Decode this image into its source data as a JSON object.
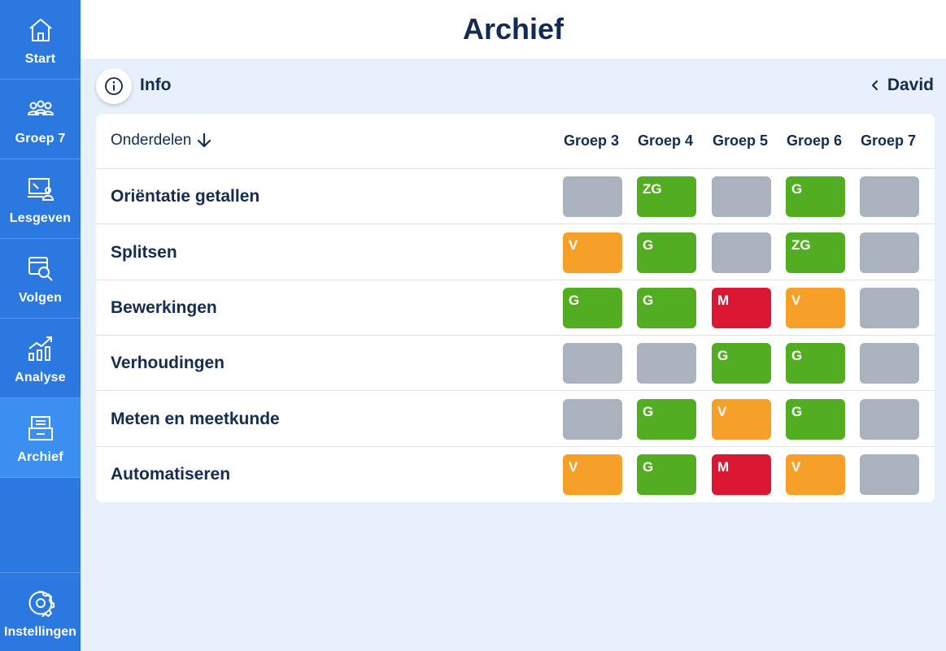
{
  "sidebar": {
    "items": [
      {
        "label": "Start",
        "icon": "home-icon"
      },
      {
        "label": "Groep 7",
        "icon": "group-icon"
      },
      {
        "label": "Lesgeven",
        "icon": "teach-icon"
      },
      {
        "label": "Volgen",
        "icon": "monitor-search-icon"
      },
      {
        "label": "Analyse",
        "icon": "analysis-chart-icon"
      },
      {
        "label": "Archief",
        "icon": "archive-icon",
        "active": true
      }
    ],
    "settings": {
      "label": "Instellingen",
      "icon": "gear-icon"
    }
  },
  "header": {
    "title": "Archief"
  },
  "infobar": {
    "info_label": "Info",
    "back_label": "David"
  },
  "table": {
    "sort_header": "Onderdelen",
    "columns": [
      "Groep 3",
      "Groep 4",
      "Groep 5",
      "Groep 6",
      "Groep 7"
    ],
    "rows": [
      {
        "label": "Oriëntatie getallen",
        "cells": [
          "",
          "ZG",
          "",
          "G",
          ""
        ]
      },
      {
        "label": "Splitsen",
        "cells": [
          "V",
          "G",
          "",
          "ZG",
          ""
        ]
      },
      {
        "label": "Bewerkingen",
        "cells": [
          "G",
          "G",
          "M",
          "V",
          ""
        ]
      },
      {
        "label": "Verhoudingen",
        "cells": [
          "",
          "",
          "G",
          "G",
          ""
        ]
      },
      {
        "label": "Meten en meetkunde",
        "cells": [
          "",
          "G",
          "V",
          "G",
          ""
        ]
      },
      {
        "label": "Automatiseren",
        "cells": [
          "V",
          "G",
          "M",
          "V",
          ""
        ]
      }
    ]
  },
  "colors": {
    "sidebar": "#2b78e0",
    "sidebar_active": "#3a8ff0",
    "empty": "#a9b2bd",
    "G": "#53ad22",
    "ZG": "#53ad22",
    "V": "#f6a02a",
    "M": "#dc1733"
  }
}
